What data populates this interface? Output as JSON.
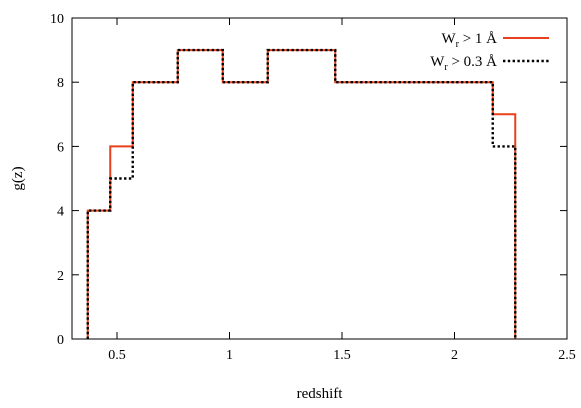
{
  "chart_data": {
    "type": "line",
    "step": true,
    "xlabel": "redshift",
    "ylabel": "g(z)",
    "xlim": [
      0.3,
      2.5
    ],
    "ylim": [
      0,
      10
    ],
    "xticks": [
      0.5,
      1,
      1.5,
      2,
      2.5
    ],
    "xtick_labels": [
      "0.5",
      "1",
      "1.5",
      "2",
      "2.5"
    ],
    "yticks": [
      0,
      2,
      4,
      6,
      8,
      10
    ],
    "ytick_labels": [
      "0",
      "2",
      "4",
      "6",
      "8",
      "10"
    ],
    "grid": false,
    "legend_position": "top-right",
    "series": [
      {
        "name": "W > 1 Å",
        "name_main": "W",
        "name_sub": "r",
        "name_rest": " > 1 Å",
        "color": "#e8401c",
        "style": "solid",
        "edges": [
          0.37,
          0.47,
          0.57,
          0.77,
          0.97,
          1.17,
          1.47,
          2.17,
          2.27
        ],
        "values": [
          4,
          6,
          8,
          9,
          8,
          9,
          8,
          7
        ]
      },
      {
        "name": "W > 0.3 Å",
        "name_main": "W",
        "name_sub": "r",
        "name_rest": " > 0.3 Å",
        "color": "#000000",
        "style": "dotted",
        "edges": [
          0.37,
          0.47,
          0.57,
          0.77,
          0.97,
          1.17,
          1.47,
          2.17,
          2.27
        ],
        "values": [
          4,
          5,
          8,
          9,
          8,
          9,
          8,
          6
        ]
      }
    ]
  }
}
